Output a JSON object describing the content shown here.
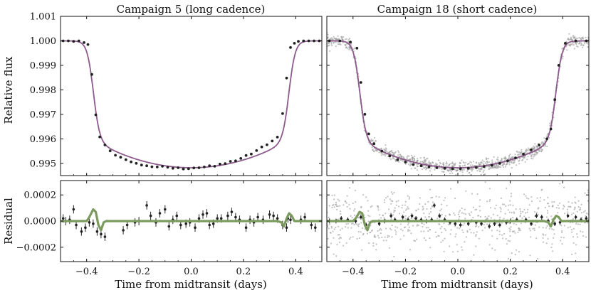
{
  "chart_data": [
    {
      "type": "scatter",
      "title": "Campaign 5 (long cadence)",
      "ylabel": "Relative flux",
      "xlim": [
        -0.5,
        0.5
      ],
      "ylim": [
        0.9945,
        1.001
      ],
      "yticks": [
        "0.995",
        "0.996",
        "0.997",
        "0.998",
        "0.999",
        "1.000",
        "1.001"
      ],
      "ytick_values": [
        0.995,
        0.996,
        0.997,
        0.998,
        0.999,
        1.0,
        1.001
      ],
      "model": {
        "depth": 0.00518,
        "half_duration": 0.375,
        "ingress_width": 0.012,
        "limb_curvature": 0.00112
      },
      "colors": {
        "data": "#222222",
        "model": "#8c5a8c"
      },
      "x": [
        -0.49,
        -0.47,
        -0.45,
        -0.43,
        -0.41,
        -0.395,
        -0.38,
        -0.365,
        -0.35,
        -0.33,
        -0.31,
        -0.29,
        -0.27,
        -0.25,
        -0.23,
        -0.21,
        -0.19,
        -0.17,
        -0.15,
        -0.13,
        -0.11,
        -0.09,
        -0.07,
        -0.05,
        -0.03,
        -0.01,
        0.01,
        0.03,
        0.05,
        0.07,
        0.09,
        0.11,
        0.13,
        0.15,
        0.17,
        0.19,
        0.21,
        0.23,
        0.25,
        0.27,
        0.29,
        0.31,
        0.33,
        0.35,
        0.365,
        0.38,
        0.395,
        0.41,
        0.43,
        0.45,
        0.47,
        0.49
      ],
      "y": [
        1.0,
        1.0,
        0.99998,
        1.0,
        0.99993,
        0.99985,
        0.99863,
        0.99698,
        0.99608,
        0.99575,
        0.99551,
        0.99533,
        0.99525,
        0.99515,
        0.99506,
        0.995,
        0.99493,
        0.9949,
        0.99486,
        0.99485,
        0.99488,
        0.99484,
        0.9948,
        0.99482,
        0.99477,
        0.99478,
        0.99481,
        0.99482,
        0.99485,
        0.9949,
        0.99488,
        0.99497,
        0.99499,
        0.99508,
        0.9951,
        0.9952,
        0.99532,
        0.99538,
        0.99552,
        0.99567,
        0.99576,
        0.99591,
        0.99607,
        0.99703,
        0.99848,
        0.99973,
        0.9999,
        0.99998,
        1.0,
        1.0,
        1.0,
        1.0
      ]
    },
    {
      "type": "scatter",
      "title": "Campaign 18 (short cadence)",
      "xlim": [
        -0.5,
        0.5
      ],
      "ylim": [
        0.9945,
        1.001
      ],
      "model": {
        "depth": 0.00518,
        "half_duration": 0.375,
        "ingress_width": 0.012,
        "limb_curvature": 0.00112
      },
      "colors": {
        "data": "#222222",
        "raw": "#9a9a9a",
        "model": "#8c5a8c"
      },
      "binned_x": [
        -0.49,
        -0.45,
        -0.41,
        -0.385,
        -0.37,
        -0.355,
        -0.34,
        -0.32,
        -0.29,
        -0.26,
        -0.23,
        -0.2,
        -0.17,
        -0.14,
        -0.11,
        -0.08,
        -0.05,
        -0.02,
        0.01,
        0.04,
        0.07,
        0.1,
        0.13,
        0.16,
        0.19,
        0.22,
        0.25,
        0.28,
        0.31,
        0.34,
        0.355,
        0.37,
        0.385,
        0.41,
        0.45,
        0.49
      ],
      "binned_y": [
        1.0,
        1.0,
        0.99995,
        0.9997,
        0.9983,
        0.997,
        0.9962,
        0.9958,
        0.9955,
        0.9953,
        0.99515,
        0.99505,
        0.99495,
        0.9949,
        0.99485,
        0.99482,
        0.9948,
        0.99478,
        0.99478,
        0.9948,
        0.99483,
        0.99487,
        0.99492,
        0.995,
        0.9951,
        0.99522,
        0.99538,
        0.99555,
        0.99575,
        0.996,
        0.9964,
        0.9976,
        0.999,
        0.9999,
        1.0,
        1.0
      ],
      "raw_scatter_sigma": 0.00012
    },
    {
      "type": "scatter",
      "ylabel": "Residual",
      "xlabel": "Time from midtransit (days)",
      "xlim": [
        -0.5,
        0.5
      ],
      "ylim": [
        -0.00031,
        0.00031
      ],
      "xticks": [
        "−0.4",
        "−0.2",
        "0.0",
        "0.2",
        "0.4"
      ],
      "xtick_values": [
        -0.4,
        -0.2,
        0.0,
        0.2,
        0.4
      ],
      "yticks": [
        "−0.0002",
        "0.0000",
        "0.0002"
      ],
      "ytick_values": [
        -0.0002,
        0.0,
        0.0002
      ],
      "colors": {
        "data": "#222222",
        "model": "#7a9a5e"
      },
      "model_line": [
        [
          -0.5,
          0
        ],
        [
          -0.4,
          0
        ],
        [
          -0.39,
          3e-05
        ],
        [
          -0.375,
          9e-05
        ],
        [
          -0.365,
          7e-05
        ],
        [
          -0.355,
          -3e-05
        ],
        [
          -0.345,
          -7e-05
        ],
        [
          -0.335,
          -1e-05
        ],
        [
          -0.325,
          0
        ],
        [
          0.33,
          0
        ],
        [
          0.345,
          -1e-05
        ],
        [
          0.355,
          -4e-05
        ],
        [
          0.365,
          2e-05
        ],
        [
          0.375,
          6e-05
        ],
        [
          0.385,
          4e-05
        ],
        [
          0.395,
          0
        ],
        [
          0.5,
          0
        ]
      ],
      "x": [
        -0.49,
        -0.48,
        -0.465,
        -0.45,
        -0.44,
        -0.42,
        -0.405,
        -0.39,
        -0.375,
        -0.36,
        -0.345,
        -0.33,
        -0.26,
        -0.245,
        -0.215,
        -0.2,
        -0.17,
        -0.155,
        -0.135,
        -0.12,
        -0.1,
        -0.085,
        -0.07,
        -0.055,
        -0.04,
        -0.02,
        -0.005,
        0.015,
        0.03,
        0.045,
        0.06,
        0.07,
        0.085,
        0.1,
        0.115,
        0.14,
        0.155,
        0.17,
        0.185,
        0.21,
        0.225,
        0.24,
        0.255,
        0.275,
        0.3,
        0.315,
        0.33,
        0.35,
        0.365,
        0.37,
        0.38,
        0.42,
        0.435,
        0.46,
        0.475
      ],
      "y": [
        2e-05,
        0.0,
        1e-05,
        9e-05,
        -3e-05,
        -8e-05,
        -5e-05,
        -1e-05,
        -2e-05,
        -8e-05,
        -0.0001,
        -0.00012,
        -7e-05,
        -3e-05,
        -1e-05,
        0.0,
        0.00012,
        4e-05,
        -1e-05,
        6e-05,
        9e-05,
        -4e-05,
        1e-05,
        4e-05,
        -3e-05,
        -2e-05,
        -1e-05,
        -5e-05,
        2e-05,
        5e-05,
        6e-05,
        -3e-05,
        -2e-05,
        2e-05,
        2e-05,
        4e-05,
        7e-05,
        3e-05,
        1e-05,
        -5e-05,
        1e-05,
        -1e-05,
        3e-05,
        1e-05,
        5e-05,
        4e-05,
        2e-05,
        -3e-05,
        -5e-05,
        2e-05,
        1e-05,
        1e-05,
        3e-05,
        -3e-05,
        -5e-05
      ]
    },
    {
      "type": "scatter",
      "xlabel": "Time from midtransit (days)",
      "xlim": [
        -0.5,
        0.5
      ],
      "ylim": [
        -0.00031,
        0.00031
      ],
      "colors": {
        "data": "#222222",
        "raw": "#9a9a9a",
        "model": "#7a9a5e"
      },
      "model_line": [
        [
          -0.5,
          0
        ],
        [
          -0.4,
          0
        ],
        [
          -0.39,
          2e-05
        ],
        [
          -0.375,
          7e-05
        ],
        [
          -0.365,
          6e-05
        ],
        [
          -0.355,
          -3e-05
        ],
        [
          -0.345,
          -7e-05
        ],
        [
          -0.335,
          -1e-05
        ],
        [
          -0.325,
          0
        ],
        [
          0.33,
          0
        ],
        [
          0.345,
          -1e-05
        ],
        [
          0.355,
          -4e-05
        ],
        [
          0.365,
          1e-05
        ],
        [
          0.375,
          4e-05
        ],
        [
          0.385,
          3e-05
        ],
        [
          0.395,
          0
        ],
        [
          0.5,
          0
        ]
      ],
      "binned_x": [
        -0.49,
        -0.465,
        -0.445,
        -0.42,
        -0.39,
        -0.37,
        -0.35,
        -0.3,
        -0.28,
        -0.255,
        -0.24,
        -0.21,
        -0.19,
        -0.175,
        -0.16,
        -0.14,
        -0.12,
        -0.1,
        -0.09,
        -0.07,
        -0.05,
        -0.03,
        -0.01,
        0.01,
        0.04,
        0.07,
        0.09,
        0.12,
        0.14,
        0.16,
        0.185,
        0.2,
        0.225,
        0.26,
        0.28,
        0.3,
        0.32,
        0.345,
        0.37,
        0.39,
        0.42,
        0.45,
        0.47,
        0.49
      ],
      "binned_y": [
        0.0,
        0.0,
        2e-05,
        1e-05,
        0.0,
        3e-05,
        -3e-05,
        -2e-05,
        0.0,
        4e-05,
        1e-05,
        3e-05,
        1e-05,
        4e-05,
        2e-05,
        1e-05,
        0.0,
        1e-05,
        0.00012,
        4e-05,
        1e-05,
        -1e-05,
        -2e-05,
        -3e-05,
        -2e-05,
        -1e-05,
        -2e-05,
        -4e-05,
        -2e-05,
        -3e-05,
        -1e-05,
        0.0,
        1e-05,
        1e-05,
        -2e-05,
        4e-05,
        3e-05,
        0.0,
        -2e-05,
        -1e-05,
        4e-05,
        3e-05,
        1e-05,
        2e-05
      ],
      "raw_scatter_sigma": 0.00011
    }
  ]
}
